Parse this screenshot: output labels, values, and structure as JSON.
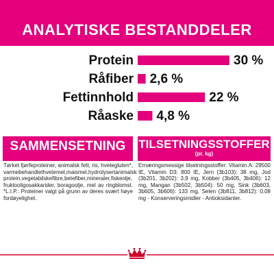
{
  "header": {
    "title": "ANALYTISKE BESTANDDELER"
  },
  "colors": {
    "accent": "#e4007c",
    "crown": "#d0002a"
  },
  "chart_data": {
    "type": "bar",
    "categories": [
      "Protein",
      "Råfiber",
      "Fettinnhold",
      "Råaske"
    ],
    "values": [
      30,
      2.6,
      22,
      4.8
    ],
    "value_labels": [
      "30 %",
      "2,6 %",
      "22 %",
      "4,8 %"
    ],
    "xlim": [
      0,
      30
    ]
  },
  "sections": {
    "composition": {
      "title": "SAMMENSETNING",
      "text": "Tørket fjørfeproteiner, animalsk fett, ris, hvetegluten*, varmebehandlethvetemel,maismel,hydrolysertanimalsk protein,vegetabilskefibre,betefiber,mineraler,fiskeolje, fruktooligosakkarider, boragoolje, mel av ringblomst. *L.I.P.: Proteiner valgt på grunn av deres svært høye fordøyelighet."
    },
    "additives": {
      "title": "TILSETNINGSSTOFFER",
      "subtitle": "(pr. kg)",
      "text": "Ernæringsmessige tilsetningsstoffer: Vitamin A: 29500 IE, Vitamin D3: 800 IE, Jern (3b103): 38 mg, Jod (3b201, 3b202): 3,9 mg, Kobber (3b405, 3b406): 12 mg, Mangan (3b502, 3b504): 50 mg, Sink (3b603, 3b605, 3b606): 133 mg, Selen (3b811, 3b812): 0,08 mg - Konserveringsmidler - Antioksidanter."
    }
  }
}
